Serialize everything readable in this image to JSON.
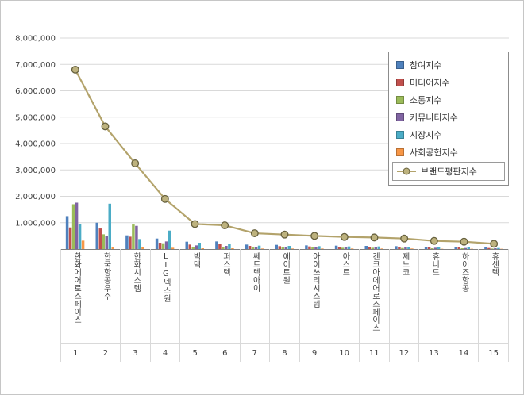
{
  "colors": {
    "grid": "#d9d9d9",
    "axis": "#808080",
    "text": "#404040",
    "frame_border": "#c6c6c6",
    "legend_border": "#8c8c8c"
  },
  "chart_data": {
    "type": "combo-bar-line",
    "title": "",
    "xlabel": "",
    "ylabel": "",
    "ylim": [
      0,
      8000000
    ],
    "ytick_step": 1000000,
    "ytick_labels": [
      "1,000,000",
      "2,000,000",
      "3,000,000",
      "4,000,000",
      "5,000,000",
      "6,000,000",
      "7,000,000",
      "8,000,000"
    ],
    "grid": true,
    "legend_position": "upper right",
    "categories": [
      "한화에어로스페이스",
      "한국항공우주",
      "한화시스템",
      "LIG넥스원",
      "빅텍",
      "퍼스텍",
      "쎄트렉아이",
      "에이트원",
      "아이쓰리시스템",
      "아스트",
      "켄코아에어로스페이스",
      "제노코",
      "휴니드",
      "하이즈항공",
      "휴센텍"
    ],
    "ranks": [
      "1",
      "2",
      "3",
      "4",
      "5",
      "6",
      "7",
      "8",
      "9",
      "10",
      "11",
      "12",
      "13",
      "14",
      "15"
    ],
    "series": [
      {
        "name": "참여지수",
        "type": "bar",
        "color": "#4F81BD",
        "values": [
          1250000,
          1000000,
          520000,
          400000,
          280000,
          290000,
          170000,
          160000,
          140000,
          130000,
          120000,
          110000,
          90000,
          80000,
          60000
        ]
      },
      {
        "name": "미디어지수",
        "type": "bar",
        "color": "#C0504D",
        "values": [
          820000,
          780000,
          470000,
          240000,
          170000,
          200000,
          120000,
          110000,
          100000,
          90000,
          90000,
          80000,
          60000,
          60000,
          40000
        ]
      },
      {
        "name": "소통지수",
        "type": "bar",
        "color": "#9BBB59",
        "values": [
          1700000,
          560000,
          930000,
          220000,
          90000,
          80000,
          70000,
          60000,
          60000,
          50000,
          50000,
          40000,
          30000,
          30000,
          20000
        ]
      },
      {
        "name": "커뮤니티지수",
        "type": "bar",
        "color": "#8064A2",
        "values": [
          1760000,
          500000,
          880000,
          290000,
          140000,
          120000,
          90000,
          80000,
          70000,
          70000,
          60000,
          60000,
          50000,
          40000,
          30000
        ]
      },
      {
        "name": "시장지수",
        "type": "bar",
        "color": "#4BACC6",
        "values": [
          950000,
          1720000,
          380000,
          700000,
          240000,
          180000,
          130000,
          120000,
          110000,
          100000,
          100000,
          90000,
          70000,
          60000,
          40000
        ]
      },
      {
        "name": "사회공헌지수",
        "type": "bar",
        "color": "#F79646",
        "values": [
          320000,
          90000,
          70000,
          50000,
          30000,
          30000,
          20000,
          20000,
          20000,
          20000,
          20000,
          20000,
          10000,
          10000,
          10000
        ]
      },
      {
        "name": "브랜드평판지수",
        "type": "line",
        "color": "#B3A36B",
        "marker_fill": "#BDB27E",
        "marker_stroke": "#66603D",
        "values": [
          6800000,
          4650000,
          3250000,
          1900000,
          950000,
          900000,
          600000,
          550000,
          500000,
          460000,
          440000,
          400000,
          310000,
          280000,
          200000
        ]
      }
    ]
  }
}
